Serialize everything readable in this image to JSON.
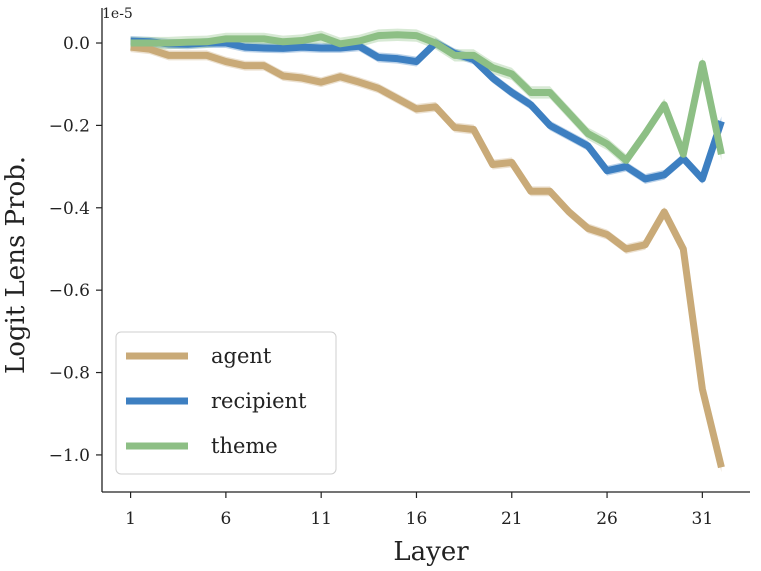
{
  "chart_data": {
    "type": "line",
    "title": "",
    "xlabel": "Layer",
    "ylabel": "Logit Lens Prob.",
    "y_scale_label": "1e-5",
    "x_ticks": [
      1,
      6,
      11,
      16,
      21,
      26,
      31
    ],
    "y_ticks": [
      0.0,
      -0.2,
      -0.4,
      -0.6,
      -0.8,
      -1.0
    ],
    "y_tick_labels": [
      "0.0",
      "−0.2",
      "−0.4",
      "−0.6",
      "−0.8",
      "−1.0"
    ],
    "xlim": [
      -0.5,
      33.5
    ],
    "ylim": [
      -1.09,
      0.085
    ],
    "legend_position": "lower-left",
    "grid": false,
    "x": [
      1,
      2,
      3,
      4,
      5,
      6,
      7,
      8,
      9,
      10,
      11,
      12,
      13,
      14,
      15,
      16,
      17,
      18,
      19,
      20,
      21,
      22,
      23,
      24,
      25,
      26,
      27,
      28,
      29,
      30,
      31,
      32
    ],
    "series": [
      {
        "name": "agent",
        "color": "#c9aa78",
        "values": [
          -0.01,
          -0.015,
          -0.03,
          -0.03,
          -0.03,
          -0.045,
          -0.055,
          -0.055,
          -0.08,
          -0.085,
          -0.095,
          -0.082,
          -0.095,
          -0.11,
          -0.135,
          -0.16,
          -0.155,
          -0.205,
          -0.21,
          -0.295,
          -0.29,
          -0.36,
          -0.36,
          -0.41,
          -0.45,
          -0.465,
          -0.5,
          -0.49,
          -0.41,
          -0.5,
          -0.84,
          -1.03
        ],
        "band": 0.012
      },
      {
        "name": "recipient",
        "color": "#3d7fc1",
        "values": [
          0.005,
          0.003,
          -0.002,
          -0.003,
          0.0,
          0.0,
          -0.01,
          -0.012,
          -0.013,
          -0.01,
          -0.012,
          -0.012,
          -0.008,
          -0.035,
          -0.038,
          -0.045,
          0.0,
          -0.025,
          -0.04,
          -0.085,
          -0.12,
          -0.15,
          -0.2,
          -0.225,
          -0.25,
          -0.31,
          -0.3,
          -0.33,
          -0.32,
          -0.28,
          -0.33,
          -0.19
        ],
        "band": 0.012
      },
      {
        "name": "theme",
        "color": "#8dbf85",
        "values": [
          0.0,
          0.0,
          0.0,
          0.002,
          0.003,
          0.01,
          0.01,
          0.01,
          0.003,
          0.006,
          0.015,
          -0.002,
          0.005,
          0.018,
          0.02,
          0.018,
          0.0,
          -0.03,
          -0.03,
          -0.06,
          -0.075,
          -0.12,
          -0.12,
          -0.17,
          -0.22,
          -0.245,
          -0.285,
          -0.22,
          -0.15,
          -0.27,
          -0.05,
          -0.27
        ],
        "band": 0.015
      }
    ]
  }
}
